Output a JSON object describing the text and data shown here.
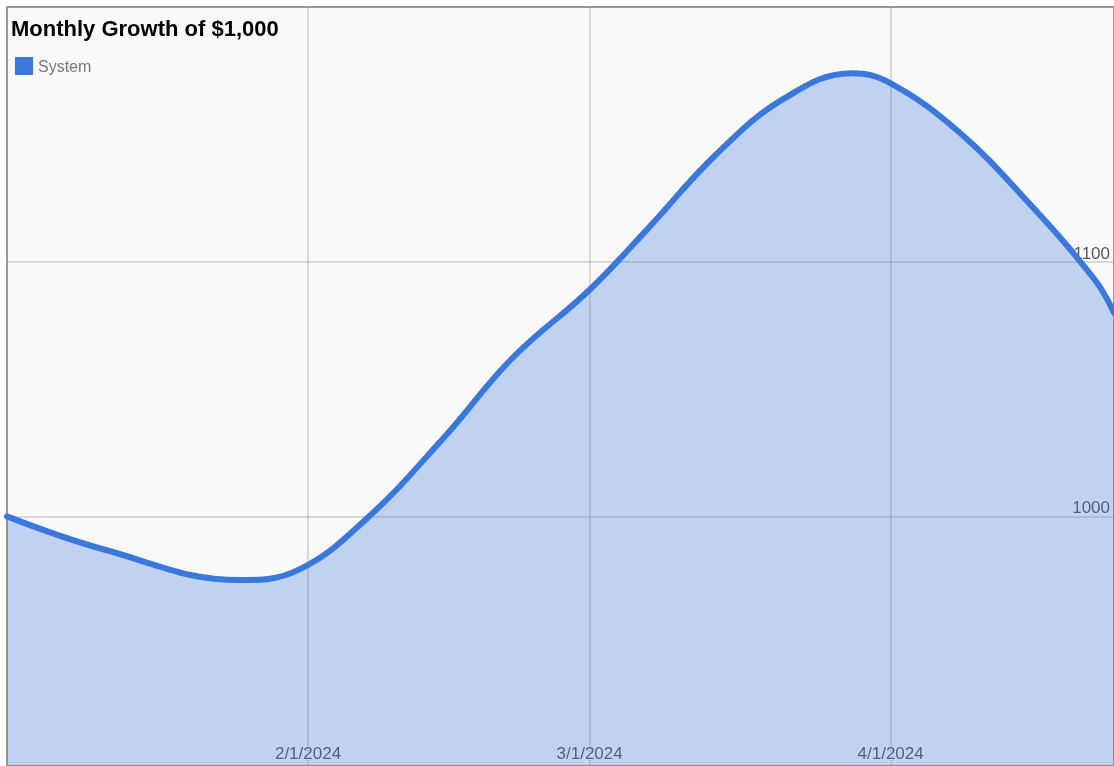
{
  "chart_data": {
    "type": "area",
    "title": "Monthly Growth of $1,000",
    "x": [
      "2024-01-01",
      "2024-01-11",
      "2024-01-25",
      "2024-01-31",
      "2024-02-07",
      "2024-02-15",
      "2024-02-22",
      "2024-03-01",
      "2024-03-07",
      "2024-03-14",
      "2024-03-21",
      "2024-03-28",
      "2024-04-01",
      "2024-04-08",
      "2024-04-15",
      "2024-04-22",
      "2024-04-24"
    ],
    "series": [
      {
        "name": "System",
        "color": "#3b78db",
        "values": [
          1000,
          987,
          975,
          979,
          999,
          1031,
          1062,
          1089,
          1113,
          1142,
          1164,
          1174,
          1170,
          1151,
          1124,
          1093,
          1080
        ]
      }
    ],
    "xlim": [
      "2024-01-01",
      "2024-04-24"
    ],
    "xticks": [
      {
        "value": "2024-02-01",
        "label": "2/1/2024"
      },
      {
        "value": "2024-03-01",
        "label": "3/1/2024"
      },
      {
        "value": "2024-04-01",
        "label": "4/1/2024"
      }
    ],
    "ylim": [
      902,
      1200
    ],
    "yticks": [
      1000,
      1100
    ],
    "grid": true,
    "legend": "top left",
    "marker": "none",
    "line_style": "solid"
  }
}
